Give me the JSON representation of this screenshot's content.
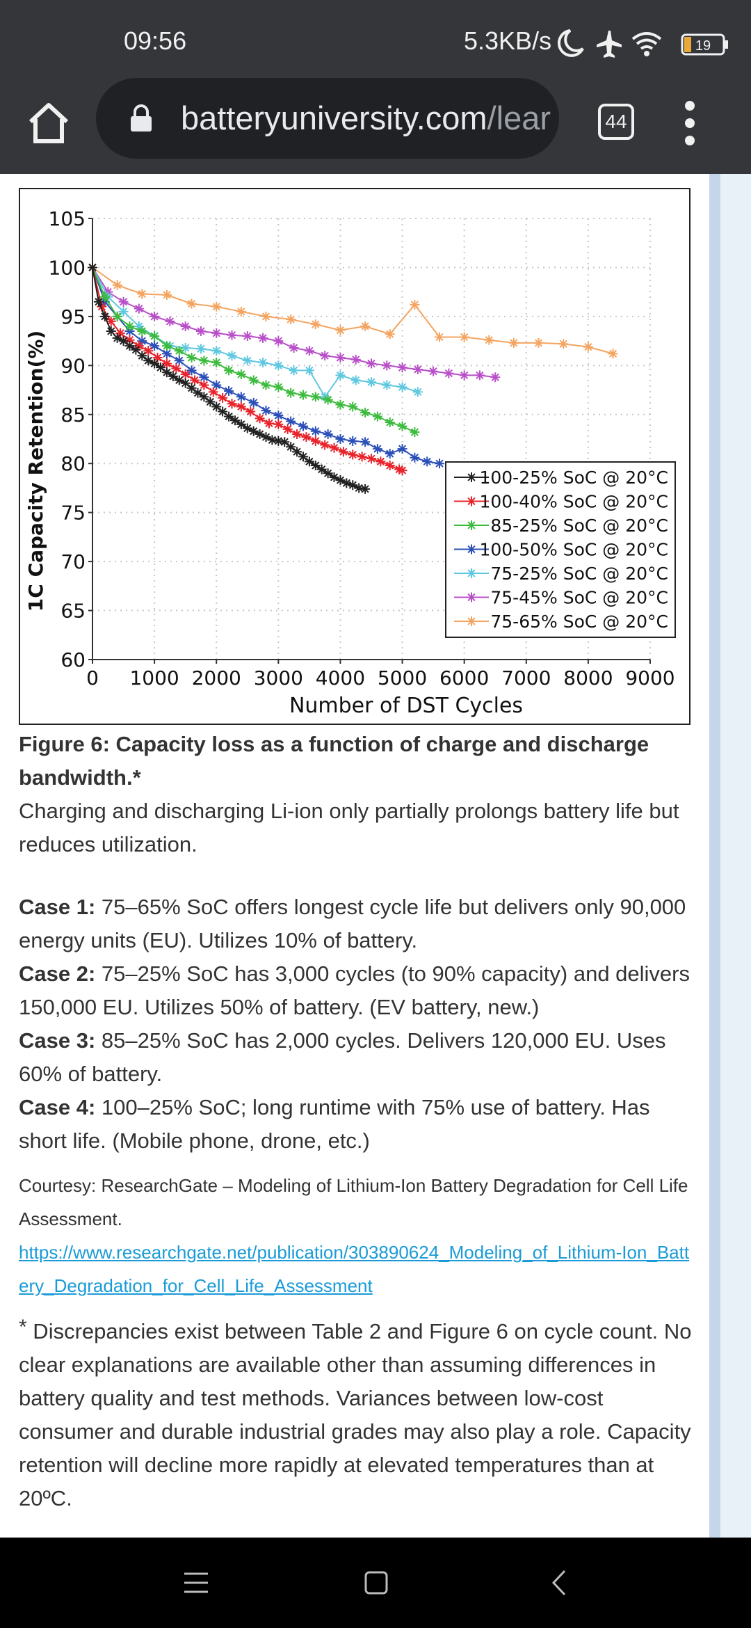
{
  "status_bar": {
    "time": "09:56",
    "network_speed": "5.3KB/s",
    "battery_level": "19",
    "icons": [
      "moon-icon",
      "airplane-icon",
      "wifi-icon",
      "battery-icon"
    ]
  },
  "browser": {
    "url_domain": "batteryuniversity.com",
    "url_path": "/lear",
    "tab_count": "44",
    "icons": [
      "home-icon",
      "lock-icon",
      "tabs-icon",
      "more-vert-icon"
    ]
  },
  "chart_data": {
    "type": "line",
    "title": "",
    "xlabel": "Number of DST Cycles",
    "ylabel": "1C Capacity Retention(%)",
    "xlim": [
      0,
      9000
    ],
    "ylim": [
      60,
      105
    ],
    "x_ticks": [
      "0",
      "1000",
      "2000",
      "3000",
      "4000",
      "5000",
      "6000",
      "7000",
      "8000",
      "9000"
    ],
    "y_ticks": [
      "60",
      "65",
      "70",
      "75",
      "80",
      "85",
      "90",
      "95",
      "100",
      "105"
    ],
    "grid": true,
    "legend_position": "lower-right",
    "series": [
      {
        "name": "100-25% SoC @ 20°C",
        "color": "#222222",
        "x": [
          0,
          100,
          200,
          300,
          400,
          500,
          600,
          700,
          800,
          900,
          1000,
          1100,
          1200,
          1300,
          1400,
          1500,
          1600,
          1700,
          1800,
          1900,
          2000,
          2100,
          2200,
          2300,
          2400,
          2500,
          2600,
          2700,
          2800,
          2900,
          3000,
          3100,
          3200,
          3300,
          3400,
          3500,
          3600,
          3700,
          3800,
          3900,
          4000,
          4100,
          4200,
          4300,
          4400
        ],
        "y": [
          100,
          96.5,
          95,
          93.5,
          92.8,
          92.5,
          92,
          91.6,
          91,
          90.5,
          90.2,
          89.8,
          89.3,
          88.9,
          88.5,
          88.2,
          87.7,
          87.2,
          86.8,
          86.3,
          85.8,
          85.3,
          84.8,
          84.4,
          84,
          83.6,
          83.3,
          83,
          82.7,
          82.4,
          82.3,
          82.2,
          81.7,
          81.2,
          80.7,
          80.2,
          79.8,
          79.4,
          79,
          78.6,
          78.3,
          78,
          77.8,
          77.5,
          77.4
        ]
      },
      {
        "name": "100-40% SoC @ 20°C",
        "color": "#e8232b",
        "x": [
          0,
          150,
          300,
          450,
          600,
          750,
          900,
          1050,
          1200,
          1350,
          1500,
          1650,
          1800,
          1950,
          2100,
          2250,
          2400,
          2550,
          2700,
          2850,
          3000,
          3150,
          3300,
          3450,
          3600,
          3750,
          3900,
          4050,
          4200,
          4350,
          4500,
          4650,
          4800,
          4950,
          5000
        ],
        "y": [
          100,
          96,
          94.5,
          93.3,
          92.6,
          92,
          91.5,
          90.8,
          90.2,
          89.7,
          89.1,
          88.5,
          88,
          87.3,
          86.7,
          86.1,
          85.8,
          85.3,
          84.6,
          84.1,
          84,
          83.5,
          83,
          82.7,
          82.3,
          81.9,
          81.6,
          81.2,
          80.9,
          80.7,
          80.5,
          80.2,
          79.8,
          79.4,
          79.3
        ]
      },
      {
        "name": "85-25% SoC @ 20°C",
        "color": "#3dbb3d",
        "x": [
          0,
          200,
          400,
          600,
          800,
          1000,
          1200,
          1400,
          1600,
          1800,
          2000,
          2200,
          2400,
          2600,
          2800,
          3000,
          3200,
          3400,
          3600,
          3800,
          4000,
          4200,
          4400,
          4600,
          4800,
          5000,
          5200
        ],
        "y": [
          100,
          97,
          95,
          94,
          93.5,
          93,
          92,
          91.5,
          90.8,
          90.5,
          90.3,
          89.5,
          89.1,
          88.5,
          88,
          87.8,
          87.2,
          87,
          86.8,
          86.5,
          86,
          85.8,
          85.2,
          84.8,
          84.2,
          83.8,
          83.2
        ]
      },
      {
        "name": "100-50% SoC @ 20°C",
        "color": "#2b4fb8",
        "x": [
          0,
          200,
          400,
          600,
          800,
          1000,
          1200,
          1400,
          1600,
          1800,
          2000,
          2200,
          2400,
          2600,
          2800,
          3000,
          3200,
          3400,
          3600,
          3800,
          4000,
          4200,
          4400,
          4600,
          4800,
          5000,
          5200,
          5400,
          5600
        ],
        "y": [
          100,
          96.5,
          95,
          93.5,
          92.5,
          92,
          91.2,
          90.5,
          89.5,
          88.8,
          88,
          87.4,
          86.8,
          86.2,
          85.4,
          84.9,
          84.3,
          83.8,
          83.3,
          83,
          82.5,
          82.3,
          82.2,
          81.5,
          81,
          81.5,
          80.6,
          80.2,
          80
        ]
      },
      {
        "name": "75-25% SoC @ 20°C",
        "color": "#5fc8e0",
        "x": [
          0,
          250,
          500,
          750,
          1000,
          1250,
          1500,
          1750,
          2000,
          2250,
          2500,
          2750,
          3000,
          3250,
          3500,
          3750,
          4000,
          4250,
          4500,
          4750,
          5000,
          5250
        ],
        "y": [
          100,
          97,
          95.5,
          94,
          93,
          92,
          91.8,
          91.7,
          91.5,
          91,
          90.5,
          90.3,
          90,
          89.5,
          89.5,
          86.8,
          89,
          88.5,
          88.3,
          88,
          87.8,
          87.3
        ]
      },
      {
        "name": "75-45% SoC @ 20°C",
        "color": "#b84fc8",
        "x": [
          0,
          250,
          500,
          750,
          1000,
          1250,
          1500,
          1750,
          2000,
          2250,
          2500,
          2750,
          3000,
          3250,
          3500,
          3750,
          4000,
          4250,
          4500,
          4750,
          5000,
          5250,
          5500,
          5750,
          6000,
          6250,
          6500
        ],
        "y": [
          100,
          97.5,
          96.5,
          95.8,
          95,
          94.5,
          94,
          93.5,
          93.3,
          93.1,
          93,
          92.8,
          92.5,
          91.8,
          91.5,
          91,
          90.8,
          90.6,
          90.2,
          90,
          89.8,
          89.6,
          89.4,
          89.2,
          89,
          89,
          88.8
        ]
      },
      {
        "name": "75-65% SoC @ 20°C",
        "color": "#f4a460",
        "x": [
          0,
          400,
          800,
          1200,
          1600,
          2000,
          2400,
          2800,
          3200,
          3600,
          4000,
          4400,
          4800,
          5200,
          5600,
          6000,
          6400,
          6800,
          7200,
          7600,
          8000,
          8400
        ],
        "y": [
          100,
          98.2,
          97.3,
          97.2,
          96.3,
          96,
          95.5,
          95,
          94.7,
          94.2,
          93.6,
          94,
          93.2,
          96.2,
          92.9,
          92.9,
          92.6,
          92.3,
          92.3,
          92.2,
          91.9,
          91.2
        ]
      }
    ]
  },
  "caption": {
    "title": "Figure 6: Capacity loss as a function of charge and discharge bandwidth.*",
    "text": "Charging and discharging Li-ion only partially prolongs battery life but reduces utilization."
  },
  "cases": [
    {
      "label": "Case 1:",
      "text": " 75–65% SoC offers longest cycle life but delivers only 90,000 energy units (EU). Utilizes 10% of battery."
    },
    {
      "label": "Case 2:",
      "text": " 75–25% SoC has 3,000 cycles (to 90% capacity) and delivers 150,000 EU. Utilizes 50% of battery. (EV battery, new.)"
    },
    {
      "label": "Case 3:",
      "text": " 85–25% SoC has 2,000 cycles. Delivers 120,000 EU. Uses 60% of battery."
    },
    {
      "label": "Case 4:",
      "text": " 100–25% SoC; long runtime with 75% use of battery. Has short life. (Mobile phone, drone, etc.)"
    }
  ],
  "credit": {
    "text": "Courtesy: ResearchGate – Modeling of Lithium-Ion Battery Degradation for Cell Life Assessment.",
    "link": "https://www.researchgate.net/publication/303890624_Modeling_of_Lithium-Ion_Battery_Degradation_for_Cell_Life_Assessment"
  },
  "footnote": {
    "marker": "*",
    "text": " Discrepancies exist between Table 2 and Figure 6 on cycle count. No clear explanations are available other than assuming differences in battery quality and test methods. Variances between low-cost consumer and durable industrial grades may also play a role. Capacity retention will decline more rapidly at elevated temperatures than at 20ºC."
  },
  "nav_bar": {
    "icons": [
      "menu-icon",
      "home-square-icon",
      "back-icon"
    ]
  }
}
